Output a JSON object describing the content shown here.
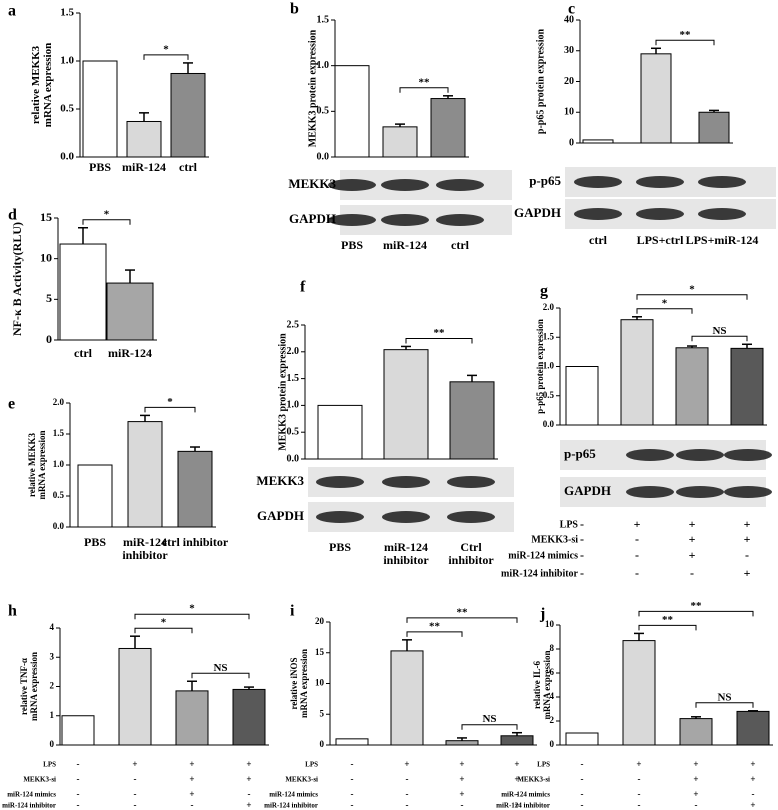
{
  "chart_data": [
    {
      "type": "bar",
      "panel": "a",
      "ylabel": "relative MEKK3\nmRNA expression",
      "categories": [
        "PBS",
        "miR-124",
        "ctrl"
      ],
      "values": [
        1.0,
        0.37,
        0.87
      ],
      "errors": [
        null,
        0.09,
        0.11
      ],
      "colors": [
        "#ffffff",
        "#d9d9d9",
        "#8c8c8c"
      ],
      "ylim": [
        0,
        1.5
      ],
      "yticks": [
        {
          "value": 0,
          "label": "0.0"
        },
        {
          "value": 0.5,
          "label": "0.5"
        },
        {
          "value": 1,
          "label": "1.0"
        },
        {
          "value": 1.5,
          "label": "1.5"
        }
      ],
      "annotations": [
        {
          "text": "*",
          "between": [
            1,
            2
          ]
        }
      ]
    },
    {
      "type": "bar",
      "panel": "b",
      "ylabel": "MEKK3 protein expression",
      "categories": [
        "PBS",
        "miR-124",
        "ctrl"
      ],
      "values": [
        1.0,
        0.33,
        0.64
      ],
      "errors": [
        null,
        0.03,
        0.03
      ],
      "colors": [
        "#ffffff",
        "#d9d9d9",
        "#8c8c8c"
      ],
      "ylim": [
        0,
        1.5
      ],
      "yticks": [
        {
          "value": 0,
          "label": "0.0"
        },
        {
          "value": 0.5,
          "label": "0.5"
        },
        {
          "value": 1,
          "label": "1.0"
        },
        {
          "value": 1.5,
          "label": "1.5"
        }
      ],
      "annotations": [
        {
          "text": "**",
          "between": [
            1,
            2
          ]
        }
      ],
      "blots": [
        "MEKK3",
        "GAPDH"
      ]
    },
    {
      "type": "bar",
      "panel": "c",
      "ylabel": "p-p65 protein expression",
      "categories": [
        "ctrl",
        "LPS+ctrl",
        "LPS+miR-124"
      ],
      "values": [
        1,
        29,
        10
      ],
      "errors": [
        null,
        1.8,
        0.6
      ],
      "colors": [
        "#ffffff",
        "#d9d9d9",
        "#8c8c8c"
      ],
      "ylim": [
        0,
        40
      ],
      "yticks": [
        0,
        10,
        20,
        30,
        40
      ],
      "annotations": [
        {
          "text": "**",
          "between": [
            1,
            2
          ]
        }
      ],
      "blots": [
        "p-p65",
        "GAPDH"
      ]
    },
    {
      "type": "bar",
      "panel": "d",
      "ylabel": "NF-κ B  Activity(RLU)",
      "categories": [
        "ctrl",
        "miR-124"
      ],
      "values": [
        11.8,
        7.0
      ],
      "errors": [
        2.0,
        1.6
      ],
      "colors": [
        "#ffffff",
        "#a6a6a6"
      ],
      "ylim": [
        0,
        15
      ],
      "yticks": [
        0,
        5,
        10,
        15
      ],
      "annotations": [
        {
          "text": "*",
          "between": [
            0,
            1
          ]
        }
      ]
    },
    {
      "type": "bar",
      "panel": "e",
      "ylabel": "relative MEKK3\nmRNA expression",
      "categories": [
        "PBS",
        "miR-124\ninhibitor",
        "ctrl inhibitor"
      ],
      "values": [
        1.0,
        1.7,
        1.22
      ],
      "errors": [
        null,
        0.1,
        0.07
      ],
      "colors": [
        "#ffffff",
        "#d9d9d9",
        "#8c8c8c"
      ],
      "ylim": [
        0,
        2
      ],
      "yticks": [
        {
          "value": 0,
          "label": "0.0"
        },
        {
          "value": 0.5,
          "label": "0.5"
        },
        {
          "value": 1,
          "label": "1.0"
        },
        {
          "value": 1.5,
          "label": "1.5"
        },
        {
          "value": 2,
          "label": "2.0"
        }
      ],
      "annotations": [
        {
          "text": "*",
          "between": [
            1,
            2
          ]
        }
      ]
    },
    {
      "type": "bar",
      "panel": "f",
      "ylabel": "MEKK3 protein expression",
      "categories": [
        "PBS",
        "miR-124\ninhibitor",
        "Ctrl\ninhibitor"
      ],
      "values": [
        1.0,
        2.04,
        1.44
      ],
      "errors": [
        null,
        0.06,
        0.12
      ],
      "colors": [
        "#ffffff",
        "#d9d9d9",
        "#8c8c8c"
      ],
      "ylim": [
        0,
        2.5
      ],
      "yticks": [
        {
          "value": 0,
          "label": "0.0"
        },
        {
          "value": 0.5,
          "label": "0.5"
        },
        {
          "value": 1,
          "label": "1.0"
        },
        {
          "value": 1.5,
          "label": "1.5"
        },
        {
          "value": 2,
          "label": "2.0"
        },
        {
          "value": 2.5,
          "label": "2.5"
        }
      ],
      "annotations": [
        {
          "text": "**",
          "between": [
            1,
            2
          ]
        }
      ],
      "blots": [
        "MEKK3",
        "GAPDH"
      ]
    },
    {
      "type": "bar",
      "panel": "g",
      "ylabel": "p-p65 protein expression",
      "values": [
        1.0,
        1.8,
        1.32,
        1.31
      ],
      "errors": [
        null,
        0.05,
        0.03,
        0.07
      ],
      "colors": [
        "#ffffff",
        "#d9d9d9",
        "#a6a6a6",
        "#595959"
      ],
      "ylim": [
        0,
        2
      ],
      "yticks": [
        {
          "value": 0,
          "label": "0.0"
        },
        {
          "value": 0.5,
          "label": "0.5"
        },
        {
          "value": 1,
          "label": "1.0"
        },
        {
          "value": 1.5,
          "label": "1.5"
        },
        {
          "value": 2,
          "label": "2.0"
        }
      ],
      "annotations": [
        {
          "text": "*",
          "between": [
            1,
            2
          ]
        },
        {
          "text": "*",
          "between": [
            1,
            3
          ]
        },
        {
          "text": "NS",
          "between": [
            2,
            3
          ]
        }
      ],
      "blots": [
        "p-p65",
        "GAPDH"
      ],
      "conditions": [
        {
          "label": "LPS",
          "signs": [
            "-",
            "+",
            "+",
            "+"
          ]
        },
        {
          "label": "MEKK3-si",
          "signs": [
            "-",
            "-",
            "+",
            "+"
          ]
        },
        {
          "label": "miR-124 mimics",
          "signs": [
            "-",
            "-",
            "+",
            "-"
          ]
        },
        {
          "label": "miR-124 inhibitor",
          "signs": [
            "-",
            "-",
            "-",
            "+"
          ]
        }
      ]
    },
    {
      "type": "bar",
      "panel": "h",
      "ylabel": "relative TNF-α\nmRNA expression",
      "values": [
        1.0,
        3.3,
        1.85,
        1.9
      ],
      "errors": [
        null,
        0.42,
        0.33,
        0.08
      ],
      "colors": [
        "#ffffff",
        "#d9d9d9",
        "#a6a6a6",
        "#595959"
      ],
      "ylim": [
        0,
        4
      ],
      "yticks": [
        0,
        1,
        2,
        3,
        4
      ],
      "annotations": [
        {
          "text": "*",
          "between": [
            1,
            2
          ]
        },
        {
          "text": "*",
          "between": [
            1,
            3
          ]
        },
        {
          "text": "NS",
          "between": [
            2,
            3
          ]
        }
      ],
      "conditions": [
        {
          "label": "LPS",
          "signs": [
            "-",
            "+",
            "+",
            "+"
          ]
        },
        {
          "label": "MEKK3-si",
          "signs": [
            "-",
            "-",
            "+",
            "+"
          ]
        },
        {
          "label": "miR-124 mimics",
          "signs": [
            "-",
            "-",
            "+",
            "-"
          ]
        },
        {
          "label": "miR-124 inhibitor",
          "signs": [
            "-",
            "-",
            "-",
            "+"
          ]
        }
      ]
    },
    {
      "type": "bar",
      "panel": "i",
      "ylabel": "relative iNOS\nmRNA expression",
      "values": [
        1.0,
        15.3,
        0.7,
        1.5
      ],
      "errors": [
        null,
        1.8,
        0.45,
        0.5
      ],
      "colors": [
        "#ffffff",
        "#d9d9d9",
        "#a6a6a6",
        "#595959"
      ],
      "ylim": [
        0,
        20
      ],
      "yticks": [
        0,
        5,
        10,
        15,
        20
      ],
      "annotations": [
        {
          "text": "**",
          "between": [
            1,
            2
          ]
        },
        {
          "text": "**",
          "between": [
            1,
            3
          ]
        },
        {
          "text": "NS",
          "between": [
            2,
            3
          ]
        }
      ],
      "conditions": [
        {
          "label": "LPS",
          "signs": [
            "-",
            "+",
            "+",
            "+"
          ]
        },
        {
          "label": "MEKK3-si",
          "signs": [
            "-",
            "-",
            "+",
            "+"
          ]
        },
        {
          "label": "miR-124 mimics",
          "signs": [
            "-",
            "-",
            "+",
            "-"
          ]
        },
        {
          "label": "miR-124 inhibitor",
          "signs": [
            "-",
            "-",
            "-",
            "+"
          ]
        }
      ]
    },
    {
      "type": "bar",
      "panel": "j",
      "ylabel": "relative IL-6\nmRNA expression",
      "values": [
        1.0,
        8.7,
        2.2,
        2.8
      ],
      "errors": [
        null,
        0.6,
        0.15,
        0.05
      ],
      "colors": [
        "#ffffff",
        "#d9d9d9",
        "#a6a6a6",
        "#595959"
      ],
      "ylim": [
        0,
        10
      ],
      "yticks": [
        0,
        2,
        4,
        6,
        8,
        10
      ],
      "annotations": [
        {
          "text": "**",
          "between": [
            1,
            2
          ]
        },
        {
          "text": "**",
          "between": [
            1,
            3
          ]
        },
        {
          "text": "NS",
          "between": [
            2,
            3
          ]
        }
      ],
      "conditions": [
        {
          "label": "LPS",
          "signs": [
            "-",
            "+",
            "+",
            "+"
          ]
        },
        {
          "label": "MEKK3-si",
          "signs": [
            "-",
            "-",
            "+",
            "+"
          ]
        },
        {
          "label": "miR-124 mimics",
          "signs": [
            "-",
            "-",
            "+",
            "-"
          ]
        },
        {
          "label": "miR-124 inhibitor",
          "signs": [
            "-",
            "-",
            "-",
            "+"
          ]
        }
      ]
    }
  ]
}
